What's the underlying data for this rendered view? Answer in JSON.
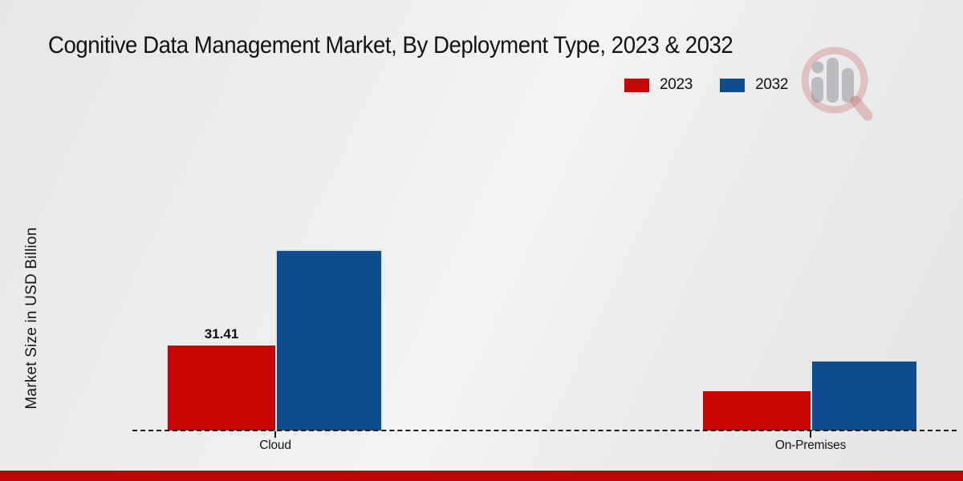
{
  "title": "Cognitive Data Management Market, By Deployment Type, 2023 & 2032",
  "y_axis_label": "Market Size in USD Billion",
  "legend": [
    {
      "label": "2023",
      "color": "#c90404"
    },
    {
      "label": "2032",
      "color": "#0d4c8d"
    }
  ],
  "colors": {
    "series_2023": "#c90404",
    "series_2032": "#0d4c8d",
    "footer_bar": "#c10404",
    "baseline": "#1c1c1c",
    "background": "#ebebeb"
  },
  "watermark": "market-research-logo",
  "chart_data": {
    "type": "bar",
    "categories": [
      "Cloud",
      "On-Premises"
    ],
    "series": [
      {
        "name": "2023",
        "color": "#c90404",
        "values": [
          31.41,
          14.5
        ]
      },
      {
        "name": "2032",
        "color": "#0d4c8d",
        "values": [
          67.0,
          26.1
        ]
      }
    ],
    "value_labels": [
      {
        "category": "Cloud",
        "series": "2023",
        "text": "31.41"
      }
    ],
    "title": "Cognitive Data Management Market, By Deployment Type, 2023 & 2032",
    "xlabel": "",
    "ylabel": "Market Size in USD Billion",
    "ylim": [
      0,
      70
    ],
    "grid": false,
    "legend_position": "top-right",
    "baseline_style": "dashed"
  }
}
